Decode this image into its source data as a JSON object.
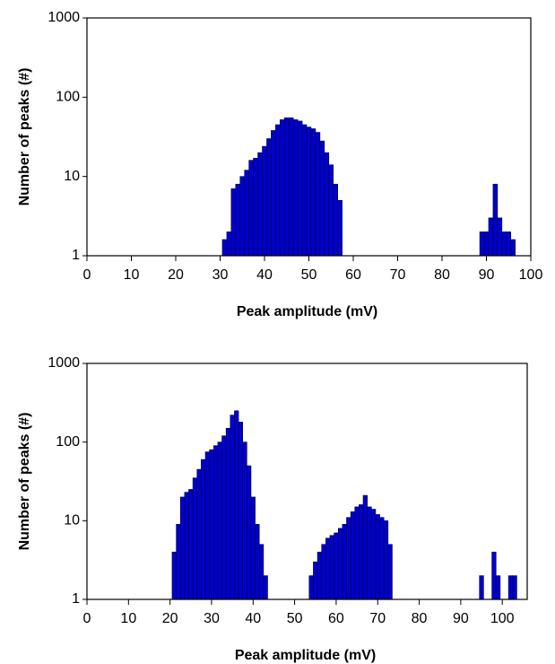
{
  "chart_data": [
    {
      "type": "histogram",
      "xlabel": "Peak amplitude (mV)",
      "ylabel": "Number of peaks (#)",
      "xlim": [
        0,
        100
      ],
      "xticks": [
        0,
        10,
        20,
        30,
        40,
        50,
        60,
        70,
        80,
        90,
        100
      ],
      "ylim": [
        1,
        1000
      ],
      "yticks": [
        1,
        10,
        100,
        1000
      ],
      "yscale": "log",
      "series": [
        {
          "color": "#0000cc",
          "bins": [
            30.5,
            31.5,
            32.5,
            33.5,
            34.5,
            35.5,
            36.5,
            37.5,
            38.5,
            39.5,
            40.5,
            41.5,
            42.5,
            43.5,
            44.5,
            45.5,
            46.5,
            47.5,
            48.5,
            49.5,
            50.5,
            51.5,
            52.5,
            53.5,
            54.5,
            55.5,
            56.5,
            57.5
          ],
          "values": [
            1.6,
            2,
            7,
            8,
            10,
            12,
            16,
            17,
            20,
            24,
            30,
            38,
            45,
            52,
            55,
            55,
            52,
            50,
            45,
            42,
            40,
            36,
            28,
            20,
            14,
            8,
            5
          ]
        },
        {
          "color": "#0000cc",
          "bins": [
            88.5,
            89.5,
            90.5,
            91.5,
            92.5,
            93.5,
            94.5,
            95.5,
            96.5
          ],
          "values": [
            2,
            2,
            3,
            8,
            3,
            2,
            2,
            1.6
          ]
        }
      ]
    },
    {
      "type": "histogram",
      "xlabel": "Peak amplitude (mV)",
      "ylabel": "Number of peaks (#)",
      "xlim": [
        0,
        106
      ],
      "xticks": [
        0,
        10,
        20,
        30,
        40,
        50,
        60,
        70,
        80,
        90,
        100
      ],
      "ylim": [
        1,
        1000
      ],
      "yticks": [
        1,
        10,
        100,
        1000
      ],
      "yscale": "log",
      "series": [
        {
          "color": "#0000cc",
          "bins": [
            20.5,
            21.5,
            22.5,
            23.5,
            24.5,
            25.5,
            26.5,
            27.5,
            28.5,
            29.5,
            30.5,
            31.5,
            32.5,
            33.5,
            34.5,
            35.5,
            36.5,
            37.5,
            38.5,
            39.5,
            40.5,
            41.5,
            42.5,
            43.5
          ],
          "values": [
            4,
            9,
            20,
            23,
            25,
            35,
            45,
            60,
            75,
            80,
            90,
            100,
            120,
            150,
            220,
            250,
            180,
            100,
            50,
            20,
            9,
            5,
            2
          ]
        },
        {
          "color": "#0000cc",
          "bins": [
            53.5,
            54.5,
            55.5,
            56.5,
            57.5,
            58.5,
            59.5,
            60.5,
            61.5,
            62.5,
            63.5,
            64.5,
            65.5,
            66.5,
            67.5,
            68.5,
            69.5,
            70.5,
            71.5,
            72.5,
            73.5
          ],
          "values": [
            2,
            3,
            4,
            5,
            6,
            6.5,
            7,
            8,
            9,
            11,
            13,
            15,
            16,
            21,
            15,
            14,
            12,
            11,
            10,
            5
          ]
        },
        {
          "color": "#0000cc",
          "bins": [
            94.5,
            95.5,
            96.5,
            97.5,
            98.5,
            99.5,
            100.5,
            101.5,
            102.5,
            103.5
          ],
          "values": [
            2,
            null,
            null,
            4,
            2,
            null,
            null,
            2,
            2
          ]
        }
      ]
    }
  ]
}
